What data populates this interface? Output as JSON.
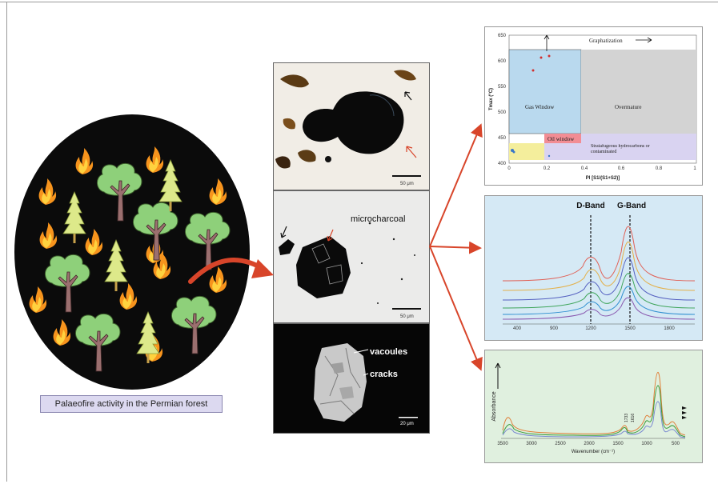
{
  "caption": "Palaeofire activity in the Permian forest",
  "micrographs": {
    "top_scale": "50 μm",
    "middle_label": "microcharcoal",
    "middle_scale": "50 μm",
    "bottom_label_1": "vacoules",
    "bottom_label_2": "cracks",
    "bottom_scale": "20 μm"
  },
  "rock_eval_plot": {
    "ylabel": "Tmax (°C)",
    "xlabel": "PI [S1/(S1+S2)]",
    "annotation_top": "Graphatization",
    "zones": [
      "Gas Window",
      "Overmature",
      "Oil window",
      "Stratafugeous hydrocarbons or contaminated"
    ],
    "yticks": [
      "650",
      "600",
      "550",
      "500",
      "450",
      "400"
    ],
    "xticks": [
      "0",
      "0.2",
      "0.4",
      "0.6",
      "0.8",
      "1"
    ]
  },
  "raman_plot": {
    "band_labels": [
      "D-Band",
      "G-Band"
    ],
    "xticks": [
      "400",
      "900",
      "1200",
      "1500",
      "1800"
    ]
  },
  "ftir_plot": {
    "ylabel": "Absorbance",
    "xlabel": "Wavenumber (cm⁻¹)",
    "xticks": [
      "3500",
      "3000",
      "2500",
      "2000",
      "1500",
      "1000",
      "500"
    ],
    "peak_labels": [
      "1733",
      "1616"
    ]
  },
  "colors": {
    "forest_bg": "#0b0b0b",
    "arrow": "#d8452a",
    "gas_window": "#b9d9ee",
    "overmature": "#d3d3d3",
    "oil_window": "#f28d94",
    "stratafugeous": "#d9d3f1",
    "immature": "#f4ee9c",
    "raman_bg": "#d5e9f5",
    "ftir_bg": "#e0f0df"
  }
}
